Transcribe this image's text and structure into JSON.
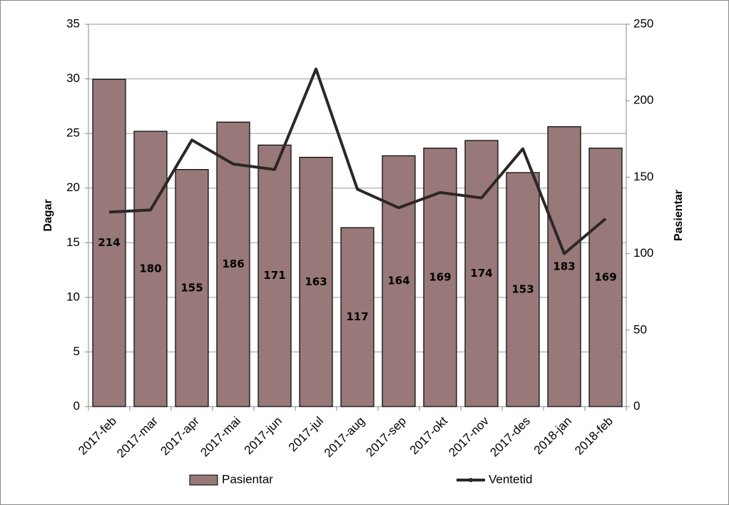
{
  "chart_data": {
    "type": "combo",
    "categories": [
      "2017-feb",
      "2017-mar",
      "2017-apr",
      "2017-mai",
      "2017-jun",
      "2017-jul",
      "2017-aug",
      "2017-sep",
      "2017-okt",
      "2017-nov",
      "2017-des",
      "2018-jan",
      "2018-feb"
    ],
    "y_label": "Dagar",
    "y2_label": "Pasientar",
    "ylim": [
      0,
      35
    ],
    "yticks": [
      0,
      5,
      10,
      15,
      20,
      25,
      30,
      35
    ],
    "y2lim": [
      0,
      250
    ],
    "y2ticks": [
      0,
      50,
      100,
      150,
      200,
      250
    ],
    "grid": true,
    "legend": "bottom",
    "series": [
      {
        "name": "Pasientar",
        "type": "bar",
        "axis": "y2",
        "color": "#987878",
        "values": [
          214,
          180,
          155,
          186,
          171,
          163,
          117,
          164,
          169,
          174,
          153,
          183,
          169
        ]
      },
      {
        "name": "Ventetid",
        "type": "line",
        "color": "#2e2626",
        "values": [
          17.8,
          18.0,
          24.4,
          22.2,
          21.7,
          30.9,
          19.9,
          18.2,
          19.6,
          19.1,
          23.6,
          14.0,
          17.2
        ]
      }
    ]
  }
}
